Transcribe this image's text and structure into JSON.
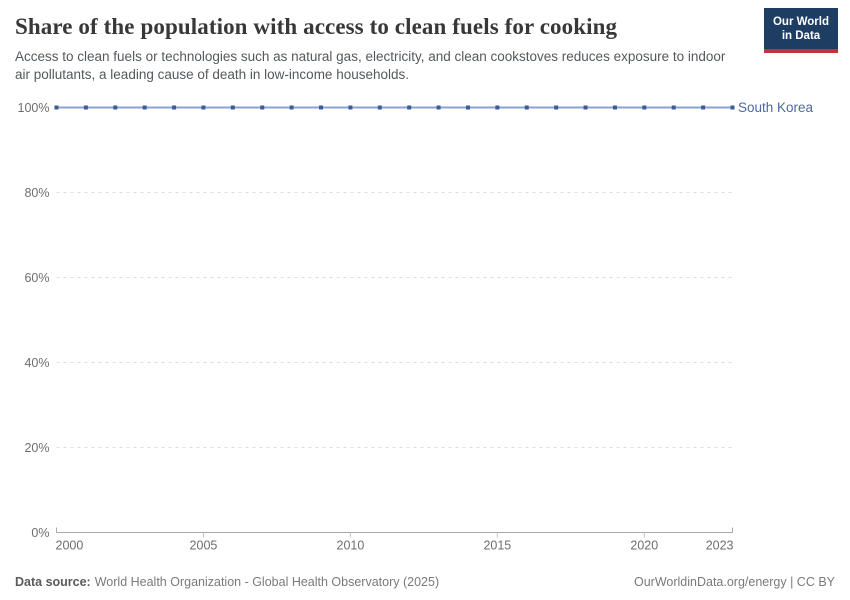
{
  "header": {
    "title": "Share of the population with access to clean fuels for cooking",
    "subtitle": "Access to clean fuels or technologies such as natural gas, electricity, and clean cookstoves reduces exposure to indoor air pollutants, a leading cause of death in low-income households."
  },
  "logo": {
    "line1": "Our World",
    "line2": "in Data",
    "bg_color": "#1D3D63",
    "stripe_color": "#C5303E",
    "text_color": "#FFFFFF"
  },
  "footer": {
    "data_source_label": "Data source:",
    "data_source_value": "World Health Organization - Global Health Observatory (2025)",
    "credit": "OurWorldinData.org/energy | CC BY"
  },
  "colors": {
    "line": "#8BA3CC",
    "marker": "#3D5C94",
    "entity_label": "#4C6A9C",
    "gridline": "#DDDDDD",
    "axis": "#A8A8A8",
    "tick": "#C2C2C2",
    "tick_label": "#6E6E6E",
    "title": "#383838",
    "subtitle": "#54595E",
    "footer_text": "#7A7A7A"
  },
  "chart_data": {
    "type": "line",
    "title": "Share of the population with access to clean fuels for cooking",
    "x": [
      2000,
      2001,
      2002,
      2003,
      2004,
      2005,
      2006,
      2007,
      2008,
      2009,
      2010,
      2011,
      2012,
      2013,
      2014,
      2015,
      2016,
      2017,
      2018,
      2019,
      2020,
      2021,
      2022,
      2023
    ],
    "series": [
      {
        "name": "South Korea",
        "values": [
          100,
          100,
          100,
          100,
          100,
          100,
          100,
          100,
          100,
          100,
          100,
          100,
          100,
          100,
          100,
          100,
          100,
          100,
          100,
          100,
          100,
          100,
          100,
          100
        ]
      }
    ],
    "xticks": [
      2000,
      2005,
      2010,
      2015,
      2020,
      2023
    ],
    "yticks": [
      0,
      20,
      40,
      60,
      80,
      100
    ],
    "ytick_labels": [
      "0%",
      "20%",
      "40%",
      "60%",
      "80%",
      "100%"
    ],
    "xlim": [
      2000,
      2023
    ],
    "ylim": [
      0,
      100
    ],
    "grid": "horizontal-dashed",
    "legend_position": "right-of-line-end"
  }
}
